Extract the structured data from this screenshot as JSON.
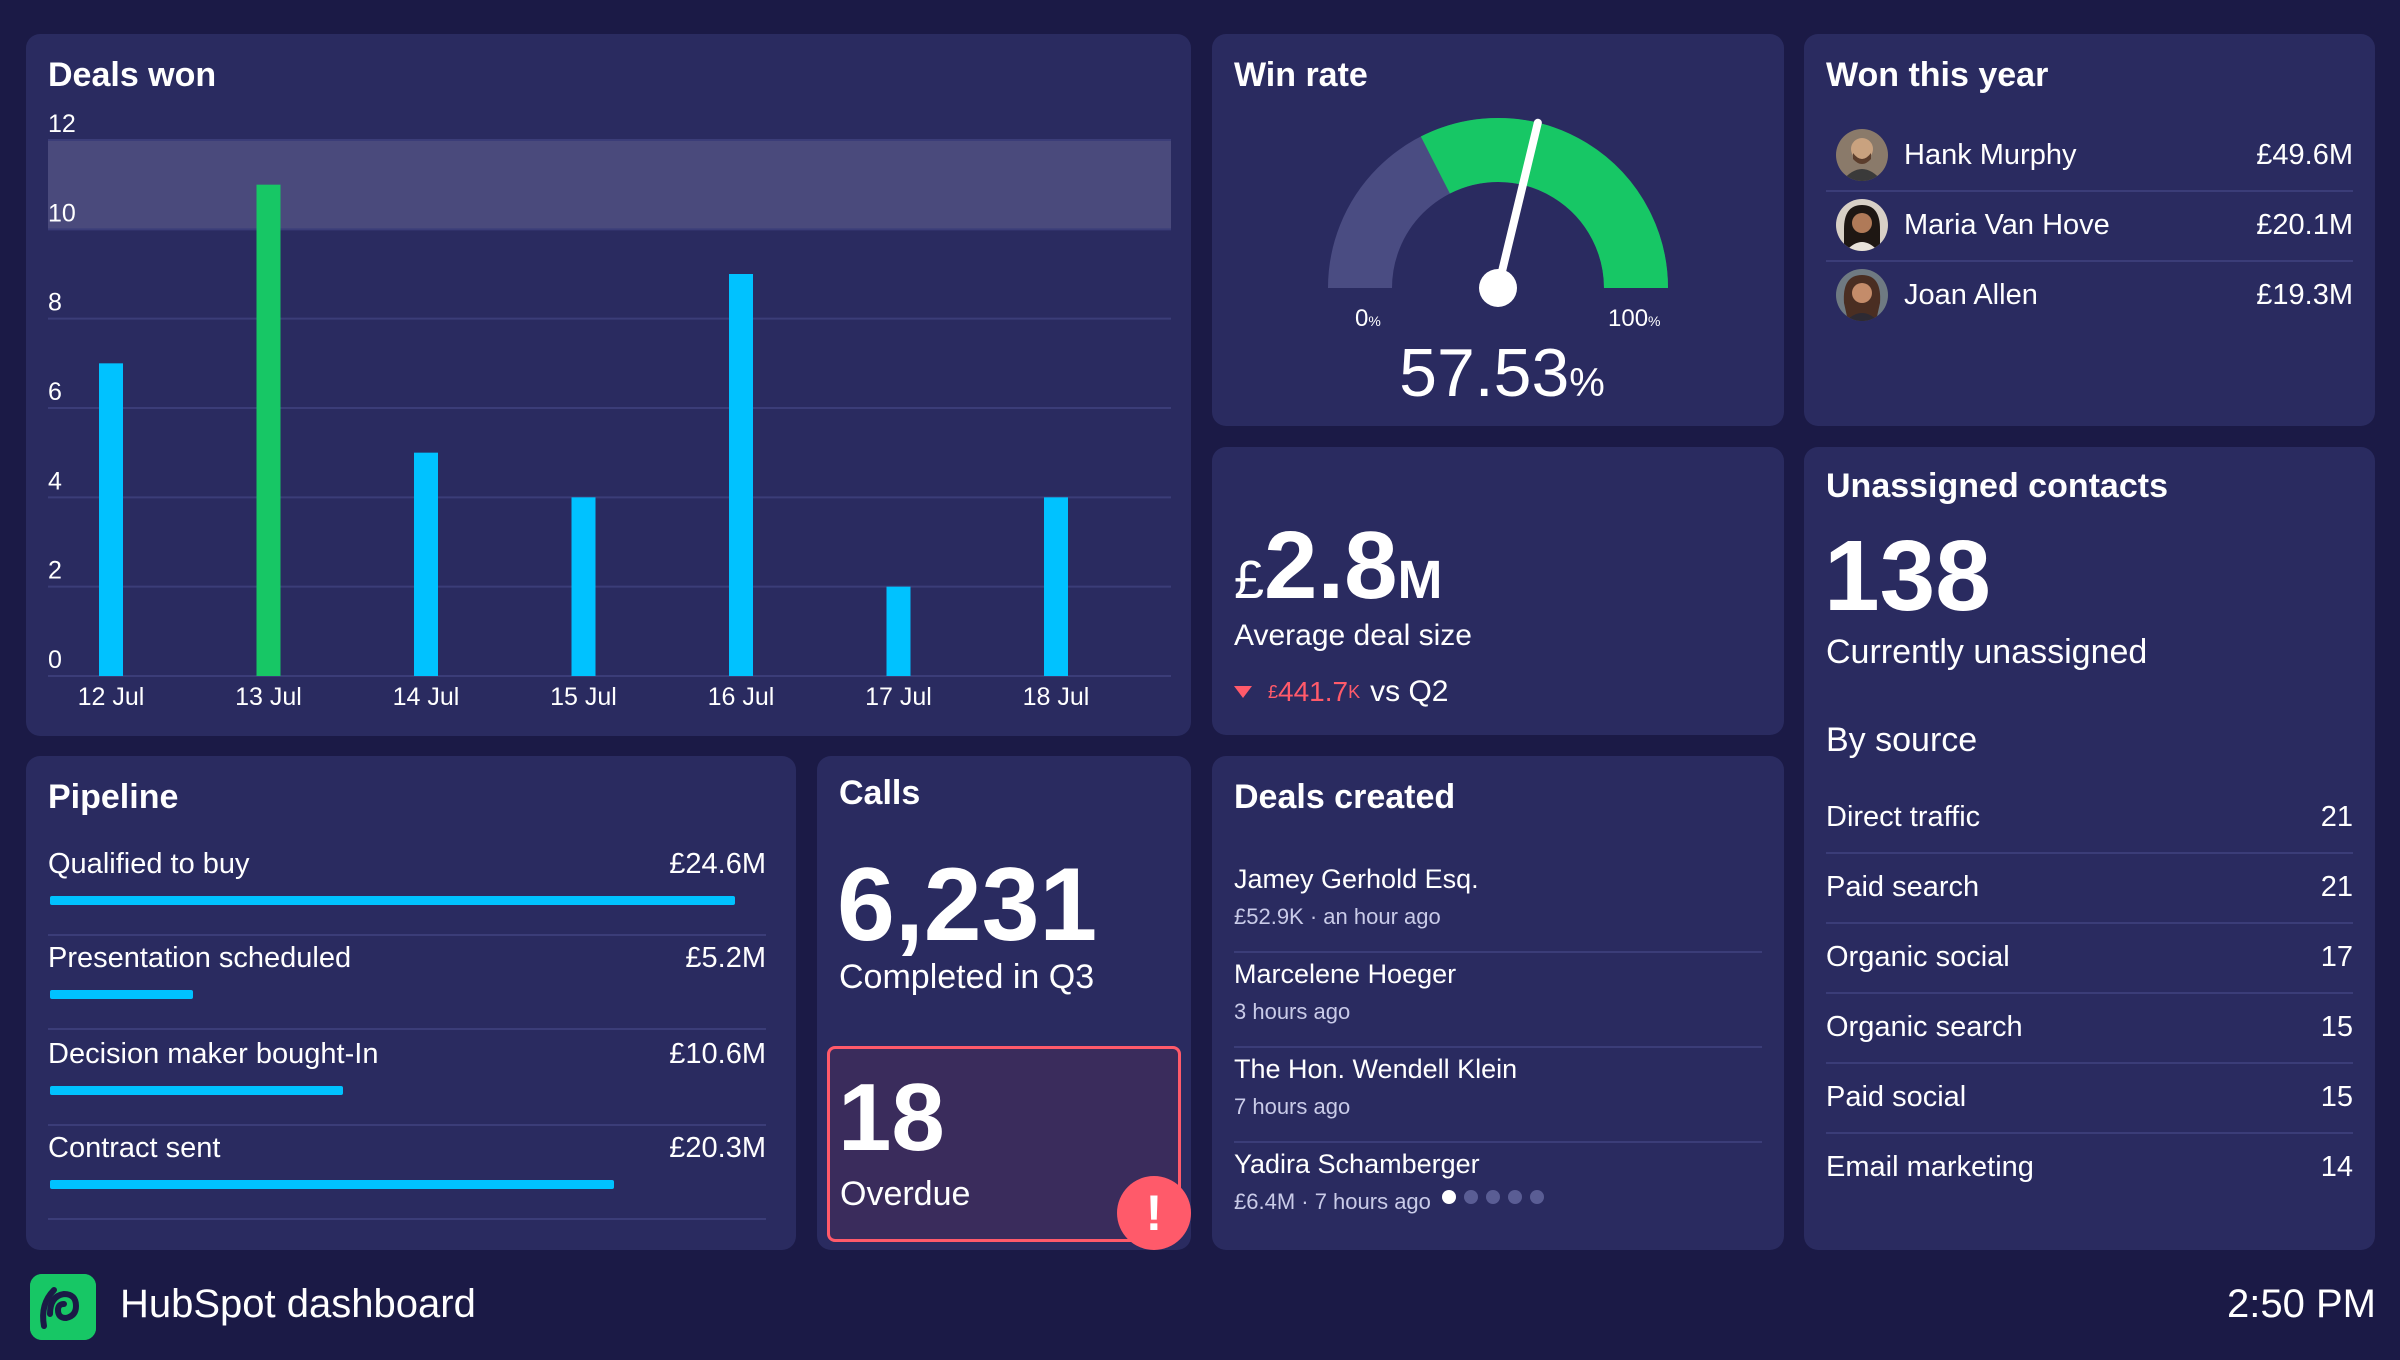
{
  "colors": {
    "background": "#1b1a46",
    "card": "#2a2b60",
    "bar_blue": "#00c2ff",
    "bar_green": "#17c765",
    "alert_red": "#ff5a6a",
    "gauge_green": "#17c765",
    "gauge_grey": "#4a4c82"
  },
  "deals_won": {
    "title": "Deals won",
    "chart_data": {
      "type": "bar",
      "categories": [
        "12 Jul",
        "13 Jul",
        "14 Jul",
        "15 Jul",
        "16 Jul",
        "17 Jul",
        "18 Jul"
      ],
      "values": [
        7,
        11,
        5,
        4,
        9,
        2,
        4
      ],
      "highlight_index": 1,
      "y_ticks": [
        "0",
        "2",
        "4",
        "6",
        "8",
        "10",
        "12"
      ],
      "ylim": [
        0,
        12
      ],
      "target_band": [
        10,
        12
      ],
      "grid": true
    }
  },
  "win_rate": {
    "title": "Win rate",
    "min_label": "0",
    "max_label": "100",
    "pct_suffix": "%",
    "value": "57.53",
    "value_suffix": "%",
    "gauge_fraction": 0.5753,
    "target_start_fraction": 0.35
  },
  "won_this_year": {
    "title": "Won this year",
    "rows": [
      {
        "name": "Hank Murphy",
        "value": "£49.6M"
      },
      {
        "name": "Maria Van Hove",
        "value": "£20.1M"
      },
      {
        "name": "Joan Allen",
        "value": "£19.3M"
      }
    ]
  },
  "avg_deal": {
    "currency": "£",
    "amount": "2.8",
    "unit": "M",
    "label": "Average deal size",
    "delta_currency": "£",
    "delta_amount": "441.7",
    "delta_unit": "K",
    "delta_suffix": "vs Q2",
    "down_icon": "triangle-down-icon"
  },
  "unassigned": {
    "title": "Unassigned contacts",
    "count": "138",
    "subtitle": "Currently unassigned",
    "by_source_label": "By source",
    "sources": [
      {
        "name": "Direct traffic",
        "count": "21"
      },
      {
        "name": "Paid search",
        "count": "21"
      },
      {
        "name": "Organic social",
        "count": "17"
      },
      {
        "name": "Organic search",
        "count": "15"
      },
      {
        "name": "Paid social",
        "count": "15"
      },
      {
        "name": "Email marketing",
        "count": "14"
      }
    ]
  },
  "pipeline": {
    "title": "Pipeline",
    "stages": [
      {
        "label": "Qualified to buy",
        "value": "£24.6M",
        "fill": 0.96
      },
      {
        "label": "Presentation scheduled",
        "value": "£5.2M",
        "fill": 0.2
      },
      {
        "label": "Decision maker bought-In",
        "value": "£10.6M",
        "fill": 0.41
      },
      {
        "label": "Contract sent",
        "value": "£20.3M",
        "fill": 0.79
      }
    ]
  },
  "calls": {
    "title": "Calls",
    "count": "6,231",
    "label": "Completed in Q3",
    "overdue_count": "18",
    "overdue_label": "Overdue",
    "alert_glyph": "!"
  },
  "deals_created": {
    "title": "Deals created",
    "items": [
      {
        "name": "Jamey Gerhold Esq.",
        "meta": "£52.9K · an hour ago"
      },
      {
        "name": "Marcelene Hoeger",
        "meta": "3 hours ago"
      },
      {
        "name": "The Hon. Wendell Klein",
        "meta": "7 hours ago"
      },
      {
        "name": "Yadira Schamberger",
        "meta": "£6.4M · 7 hours ago"
      }
    ],
    "page_count": 5,
    "active_page": 1
  },
  "footer": {
    "title": "HubSpot dashboard",
    "time": "2:50 PM",
    "logo_icon": "hubspot-logo-icon"
  }
}
